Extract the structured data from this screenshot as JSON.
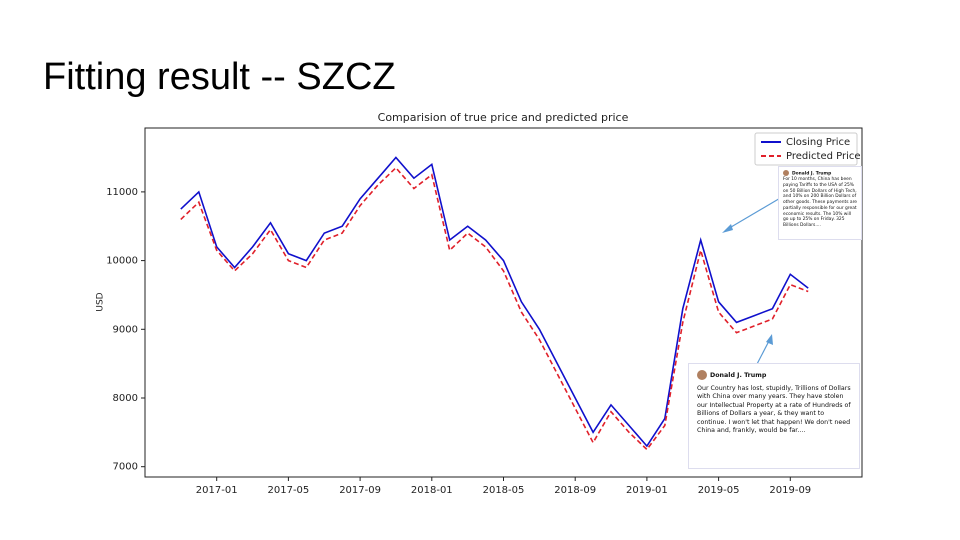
{
  "slide_title": "Fitting result -- SZCZ",
  "chart_data": {
    "type": "line",
    "title": "Comparision of true price and predicted price",
    "y_label": "USD",
    "x": [
      "2016-11",
      "2016-12",
      "2017-01",
      "2017-02",
      "2017-03",
      "2017-04",
      "2017-05",
      "2017-06",
      "2017-07",
      "2017-08",
      "2017-09",
      "2017-10",
      "2017-11",
      "2017-12",
      "2018-01",
      "2018-02",
      "2018-03",
      "2018-04",
      "2018-05",
      "2018-06",
      "2018-07",
      "2018-08",
      "2018-09",
      "2018-10",
      "2018-11",
      "2018-12",
      "2019-01",
      "2019-02",
      "2019-03",
      "2019-04",
      "2019-05",
      "2019-06",
      "2019-07",
      "2019-08",
      "2019-09",
      "2019-10"
    ],
    "series": [
      {
        "name": "Closing Price",
        "color": "#1010cc",
        "style": "solid",
        "values": [
          10750,
          11000,
          10200,
          9900,
          10200,
          10550,
          10100,
          10000,
          10400,
          10500,
          10900,
          11200,
          11500,
          11200,
          11400,
          10300,
          10500,
          10300,
          10000,
          9400,
          9000,
          8500,
          8000,
          7500,
          7900,
          7600,
          7300,
          7700,
          9300,
          10300,
          9400,
          9100,
          9200,
          9300,
          9800,
          9600
        ]
      },
      {
        "name": "Predicted Price",
        "color": "#e0202a",
        "style": "dashed",
        "values": [
          10600,
          10850,
          10150,
          9850,
          10100,
          10450,
          10000,
          9900,
          10300,
          10400,
          10800,
          11100,
          11350,
          11050,
          11250,
          10150,
          10400,
          10200,
          9850,
          9250,
          8850,
          8350,
          7850,
          7350,
          7800,
          7500,
          7250,
          7600,
          9100,
          10150,
          9250,
          8950,
          9050,
          9150,
          9650,
          9550
        ]
      }
    ],
    "xlim": [
      "2016-09",
      "2020-01"
    ],
    "xticks": [
      "2017-01",
      "2017-05",
      "2017-09",
      "2018-01",
      "2018-05",
      "2018-09",
      "2019-01",
      "2019-05",
      "2019-09"
    ],
    "ylim": [
      6850,
      11930
    ],
    "yticks": [
      7000,
      8000,
      9000,
      10000,
      11000
    ],
    "legend": "upper right",
    "annotations": [
      {
        "author": "Donald J. Trump",
        "text": "For 10 months, China has been paying Tariffs to the USA of 25% on 50 Billion Dollars of High Tech, and 10% on 200 Billion Dollars of other goods. These payments are partially responsible for our great economic results. The 10% will go up to 25% on Friday. 325 Billions Dollars...."
      },
      {
        "author": "Donald J. Trump",
        "text": "Our Country has lost, stupidly, Trillions of Dollars with China over many years. They have stolen our Intellectual Property at a rate of Hundreds of Billions of Dollars a year, & they want to continue. I won't let that happen! We don't need China and, frankly, would be far...."
      }
    ]
  }
}
